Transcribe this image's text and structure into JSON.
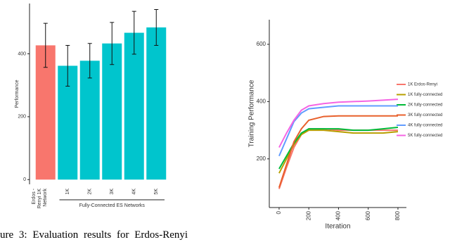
{
  "chart_data": [
    {
      "type": "bar",
      "y_label": "Performance",
      "categories": [
        "Erdos - Renyi 1K Network",
        "1K",
        "2K",
        "3K",
        "4K",
        "5K"
      ],
      "values": [
        427,
        362,
        378,
        433,
        467,
        484
      ],
      "errors": [
        70,
        65,
        55,
        67,
        68,
        57
      ],
      "colors": [
        "#f8766d",
        "#00c5cd",
        "#00c5cd",
        "#00c5cd",
        "#00c5cd",
        "#00c5cd"
      ],
      "group_label": "Fully-Connected ES Networks",
      "ylim": [
        -15,
        560
      ],
      "yticks": [
        0,
        200,
        400
      ]
    },
    {
      "type": "line",
      "x_label": "Iteration",
      "y_label": "Training Performance",
      "x": [
        0,
        50,
        100,
        150,
        200,
        300,
        400,
        500,
        600,
        700,
        800
      ],
      "series": [
        {
          "name": "1K Erdos-Renyi",
          "color": "#f8766d",
          "values": [
            95,
            170,
            240,
            285,
            305,
            305,
            300,
            300,
            300,
            300,
            300
          ]
        },
        {
          "name": "1K fully-connected",
          "color": "#b79f00",
          "values": [
            150,
            200,
            250,
            285,
            300,
            300,
            295,
            290,
            290,
            290,
            295
          ]
        },
        {
          "name": "2K fully-connected",
          "color": "#00ba38",
          "values": [
            165,
            210,
            255,
            290,
            305,
            305,
            305,
            300,
            300,
            305,
            310
          ]
        },
        {
          "name": "3K fully-connected",
          "color": "#e8602c",
          "values": [
            100,
            180,
            260,
            305,
            335,
            348,
            350,
            350,
            350,
            350,
            350
          ]
        },
        {
          "name": "4K fully-connected",
          "color": "#619cff",
          "values": [
            210,
            270,
            330,
            360,
            375,
            380,
            385,
            385,
            385,
            385,
            385
          ]
        },
        {
          "name": "5K fully-connected",
          "color": "#f564e3",
          "values": [
            240,
            290,
            335,
            370,
            385,
            393,
            398,
            400,
            402,
            405,
            408
          ]
        }
      ],
      "xlim": [
        -66,
        857
      ],
      "xticks": [
        0,
        200,
        400,
        600,
        800
      ],
      "ylim": [
        30,
        686
      ],
      "yticks": [
        200,
        400,
        600
      ]
    }
  ],
  "caption": "ure 3:  Evaluation results for Erdos-Renyi"
}
